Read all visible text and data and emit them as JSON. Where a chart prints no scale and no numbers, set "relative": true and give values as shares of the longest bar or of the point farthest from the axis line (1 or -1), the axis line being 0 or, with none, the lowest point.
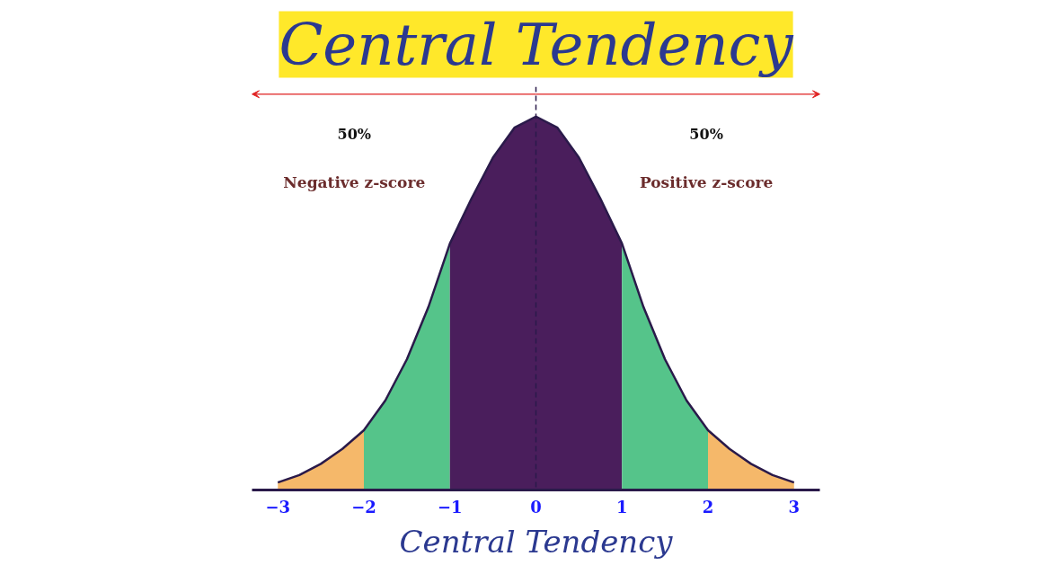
{
  "chart_data": {
    "type": "area",
    "title": "Central Tendency",
    "relative": true,
    "xlim": [
      -3.3,
      3.3
    ],
    "xticks": [
      -3,
      -2,
      -1,
      0,
      1,
      2,
      3
    ],
    "series": [
      {
        "color": "#f5b86a",
        "x": [
          -3,
          -2.75,
          -2.5,
          -2.25,
          -2
        ],
        "values": [
          0.02,
          0.04,
          0.07,
          0.11,
          0.16
        ]
      },
      {
        "color": "#55c48a",
        "x": [
          -2,
          -1.75,
          -1.5,
          -1.25,
          -1
        ],
        "values": [
          0.16,
          0.24,
          0.35,
          0.49,
          0.66
        ]
      },
      {
        "color": "#4a1e5c",
        "x": [
          -1,
          -0.75,
          -0.5,
          -0.25,
          0,
          0.25,
          0.5,
          0.75,
          1
        ],
        "values": [
          0.66,
          0.78,
          0.89,
          0.97,
          1,
          0.97,
          0.89,
          0.78,
          0.66
        ]
      },
      {
        "color": "#55c48a",
        "x": [
          1,
          1.25,
          1.5,
          1.75,
          2
        ],
        "values": [
          0.66,
          0.49,
          0.35,
          0.24,
          0.16
        ]
      },
      {
        "color": "#f5b86a",
        "x": [
          2,
          2.25,
          2.5,
          2.75,
          3
        ],
        "values": [
          0.16,
          0.11,
          0.07,
          0.04,
          0.02
        ]
      },
      {
        "type": "line",
        "color": "#2a1a4a",
        "x": [
          -3,
          -2.75,
          -2.5,
          -2.25,
          -2,
          -1.75,
          -1.5,
          -1.25,
          -1,
          -0.75,
          -0.5,
          -0.25,
          0,
          0.25,
          0.5,
          0.75,
          1,
          1.25,
          1.5,
          1.75,
          2,
          2.25,
          2.5,
          2.75,
          3
        ],
        "values": [
          0.02,
          0.04,
          0.07,
          0.11,
          0.16,
          0.24,
          0.35,
          0.49,
          0.66,
          0.78,
          0.89,
          0.97,
          1,
          0.97,
          0.89,
          0.78,
          0.66,
          0.49,
          0.35,
          0.24,
          0.16,
          0.11,
          0.07,
          0.04,
          0.02
        ]
      }
    ],
    "ref_lines": [
      {
        "axis": "x",
        "value": 0,
        "line_style": "dashed",
        "color": "#2a1a4a"
      }
    ],
    "annotations": [
      "50%",
      "Negative z-score",
      "50%",
      "Positive z-score",
      "Central Tendency"
    ],
    "grid": false
  }
}
